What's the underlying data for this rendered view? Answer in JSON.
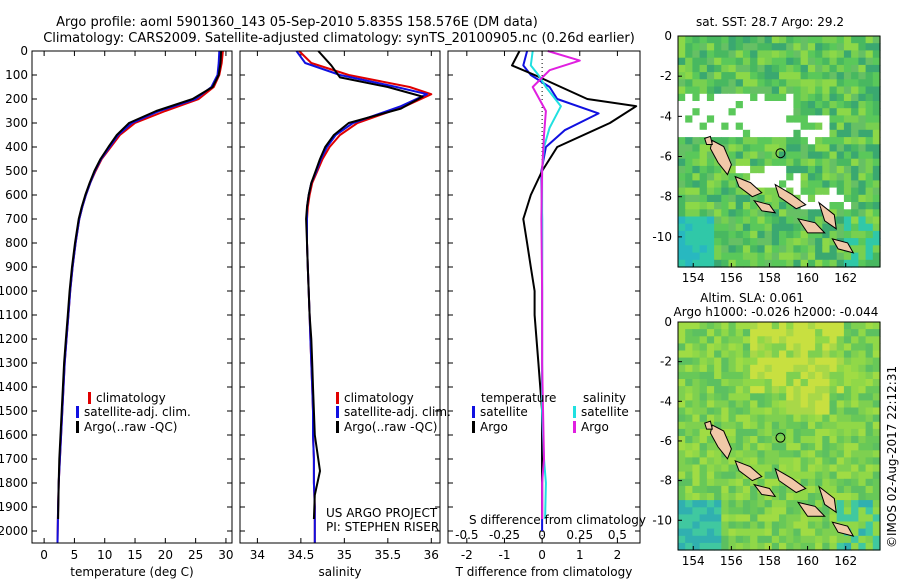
{
  "title": {
    "line1": "Argo profile: aoml 5901360_143 05-Sep-2010 5.835S 158.576E (DM data)",
    "line2": "Climatology: CARS2009. Satellite-adjusted climatology: synTS_20100905.nc (0.26d earlier)"
  },
  "colors": {
    "climatology": "#e00000",
    "satellite": "#1010e0",
    "argo": "#000000",
    "sal_satellite": "#20e0e0",
    "sal_argo": "#e020e0"
  },
  "legend": {
    "climatology": "climatology",
    "satellite_adj": "satellite-adj. clim.",
    "argo": "Argo(..raw -QC)",
    "diff_temperature": "temperature",
    "diff_salinity": "salinity",
    "satellite": "satellite",
    "argo_short": "Argo"
  },
  "annotations": {
    "project": "US ARGO PROJECT",
    "pi": "PI: STEPHEN RISER",
    "s_diff_label": "S difference from climatology",
    "imos_stamp": "©IMOS 02-Aug-2017 22:12:31"
  },
  "maps": {
    "sst_title": "sat. SST: 28.7 Argo: 29.2",
    "sla_title1": "Altim. SLA: 0.061",
    "sla_title2": "Argo h1000: -0.026 h2000: -0.044",
    "x_ticks": [
      "154",
      "156",
      "158",
      "160",
      "162"
    ],
    "y_ticks": [
      "0",
      "-2",
      "-4",
      "-6",
      "-8",
      "-10"
    ]
  },
  "chart_data": [
    {
      "type": "line",
      "xlabel": "temperature (deg C)",
      "ylabel": "",
      "xlim": [
        -2,
        31
      ],
      "ylim": [
        2050,
        0
      ],
      "x_ticks": [
        0,
        5,
        10,
        15,
        20,
        25,
        30
      ],
      "y_ticks": [
        0,
        100,
        200,
        300,
        400,
        500,
        600,
        700,
        800,
        900,
        1000,
        1100,
        1200,
        1300,
        1400,
        1500,
        1600,
        1700,
        1800,
        1900,
        2000
      ],
      "series": [
        {
          "name": "climatology",
          "x": [
            29.5,
            29.3,
            28.9,
            28.0,
            25.5,
            20.0,
            15.0,
            12.5,
            11.0,
            9.5,
            8.5,
            7.6,
            6.9,
            6.3,
            5.8,
            5.2,
            4.7,
            4.3,
            4.0,
            3.7,
            3.4,
            3.2,
            3.0,
            2.8,
            2.6,
            2.4,
            2.3,
            2.2
          ],
          "y": [
            0,
            50,
            100,
            150,
            200,
            250,
            300,
            350,
            400,
            450,
            500,
            550,
            600,
            650,
            700,
            800,
            900,
            1000,
            1100,
            1200,
            1300,
            1400,
            1500,
            1600,
            1700,
            1800,
            1900,
            2050
          ]
        },
        {
          "name": "satellite-adj. clim.",
          "x": [
            28.9,
            28.8,
            28.6,
            27.6,
            25.0,
            19.0,
            14.5,
            12.2,
            10.8,
            9.4,
            8.4,
            7.6,
            6.9,
            6.3,
            5.8,
            5.2,
            4.7,
            4.3,
            4.0,
            3.7,
            3.4,
            3.2,
            3.0,
            2.8,
            2.6,
            2.4,
            2.3,
            2.2
          ],
          "y": [
            0,
            50,
            100,
            150,
            200,
            250,
            300,
            350,
            400,
            450,
            500,
            550,
            600,
            650,
            700,
            800,
            900,
            1000,
            1100,
            1200,
            1300,
            1400,
            1500,
            1600,
            1700,
            1800,
            1900,
            2050
          ]
        },
        {
          "name": "Argo(..raw -QC)",
          "x": [
            29.2,
            29.1,
            28.8,
            27.8,
            24.5,
            18.5,
            14.0,
            12.0,
            10.6,
            9.3,
            8.3,
            7.5,
            6.8,
            6.2,
            5.7,
            5.1,
            4.6,
            4.2,
            3.9,
            3.6,
            3.3,
            3.1,
            2.9,
            2.7,
            2.5,
            2.4,
            2.3
          ],
          "y": [
            0,
            50,
            100,
            150,
            200,
            250,
            300,
            350,
            400,
            450,
            500,
            550,
            600,
            650,
            700,
            800,
            900,
            1000,
            1100,
            1200,
            1300,
            1400,
            1500,
            1600,
            1700,
            1800,
            1950
          ]
        }
      ]
    },
    {
      "type": "line",
      "xlabel": "salinity",
      "ylabel": "",
      "xlim": [
        33.8,
        36.1
      ],
      "ylim": [
        2050,
        0
      ],
      "x_ticks": [
        34,
        34.5,
        35,
        35.5,
        36
      ],
      "series": [
        {
          "name": "climatology",
          "x": [
            34.48,
            34.62,
            35.05,
            35.75,
            36.0,
            35.7,
            35.15,
            34.95,
            34.83,
            34.75,
            34.69,
            34.63,
            34.6,
            34.58,
            34.57,
            34.57,
            34.58,
            34.59,
            34.6,
            34.61,
            34.62,
            34.63,
            34.64,
            34.64,
            34.65,
            34.65,
            34.66,
            34.66
          ],
          "y": [
            0,
            50,
            100,
            150,
            180,
            230,
            300,
            350,
            400,
            450,
            500,
            550,
            600,
            650,
            700,
            800,
            900,
            1000,
            1100,
            1200,
            1300,
            1400,
            1500,
            1600,
            1700,
            1800,
            1900,
            2050
          ]
        },
        {
          "name": "satellite-adj. clim.",
          "x": [
            34.45,
            34.55,
            34.95,
            35.6,
            35.95,
            35.65,
            35.1,
            34.9,
            34.8,
            34.73,
            34.68,
            34.62,
            34.59,
            34.57,
            34.57,
            34.57,
            34.58,
            34.59,
            34.6,
            34.61,
            34.62,
            34.63,
            34.64,
            34.64,
            34.65,
            34.65,
            34.66,
            34.66
          ],
          "y": [
            0,
            50,
            100,
            150,
            180,
            230,
            300,
            350,
            400,
            450,
            500,
            550,
            600,
            650,
            700,
            800,
            900,
            1000,
            1100,
            1200,
            1300,
            1400,
            1500,
            1600,
            1700,
            1800,
            1900,
            2050
          ]
        },
        {
          "name": "Argo(..raw -QC)",
          "x": [
            34.7,
            34.85,
            34.95,
            35.5,
            35.9,
            35.65,
            35.05,
            34.88,
            34.78,
            34.72,
            34.67,
            34.62,
            34.59,
            34.57,
            34.56,
            34.57,
            34.58,
            34.59,
            34.6,
            34.62,
            34.63,
            34.64,
            34.65,
            34.66,
            34.72,
            34.66,
            34.65
          ],
          "y": [
            0,
            60,
            110,
            150,
            190,
            240,
            300,
            350,
            400,
            450,
            500,
            550,
            600,
            650,
            700,
            800,
            900,
            1000,
            1100,
            1200,
            1300,
            1400,
            1500,
            1600,
            1750,
            1850,
            1950
          ]
        }
      ]
    },
    {
      "type": "line",
      "xlabel": "T difference from climatology",
      "ylabel": "",
      "xlim": [
        -2.5,
        2.6
      ],
      "ylim": [
        2050,
        0
      ],
      "x_ticks": [
        -2,
        -1,
        0,
        1,
        2
      ],
      "top_tick_labels": [
        "-0.5",
        "-0.25",
        "0",
        "0.25",
        "0.5"
      ],
      "series": [
        {
          "name": "temperature satellite",
          "x": [
            -0.4,
            -0.5,
            -0.3,
            0.2,
            0.4,
            1.5,
            0.6,
            0.1,
            -0.02,
            0.0,
            0.0,
            0.0,
            0.0,
            0.0,
            0.0,
            0.0
          ],
          "y": [
            0,
            60,
            100,
            150,
            200,
            260,
            330,
            400,
            500,
            700,
            900,
            1100,
            1300,
            1500,
            1700,
            2000
          ]
        },
        {
          "name": "temperature Argo",
          "x": [
            -0.6,
            -0.8,
            -0.2,
            0.5,
            1.2,
            2.5,
            1.8,
            0.4,
            0.0,
            -0.3,
            -0.5,
            -0.4,
            -0.3,
            -0.2,
            -0.2,
            -0.1,
            0.0,
            0.0,
            0.0
          ],
          "y": [
            0,
            60,
            100,
            150,
            200,
            230,
            300,
            400,
            500,
            600,
            700,
            800,
            900,
            1000,
            1100,
            1300,
            1500,
            1700,
            1950
          ]
        },
        {
          "name": "salinity satellite",
          "x": [
            -0.25,
            -0.3,
            -0.1,
            0.1,
            0.5,
            0.2,
            0.05,
            0.0,
            0.0,
            0.0,
            0.0,
            0.05,
            0.1,
            0.08
          ],
          "y": [
            0,
            60,
            100,
            150,
            230,
            320,
            400,
            500,
            800,
            1100,
            1500,
            1700,
            1800,
            1950
          ]
        },
        {
          "name": "salinity Argo",
          "x": [
            0.15,
            1.0,
            0.2,
            -0.25,
            0.1,
            0.05,
            0.0,
            -0.02,
            0.0,
            0.0,
            0.05,
            0.0,
            0.0
          ],
          "y": [
            0,
            40,
            80,
            150,
            250,
            350,
            500,
            700,
            1000,
            1300,
            1700,
            1800,
            1950
          ]
        }
      ]
    }
  ]
}
